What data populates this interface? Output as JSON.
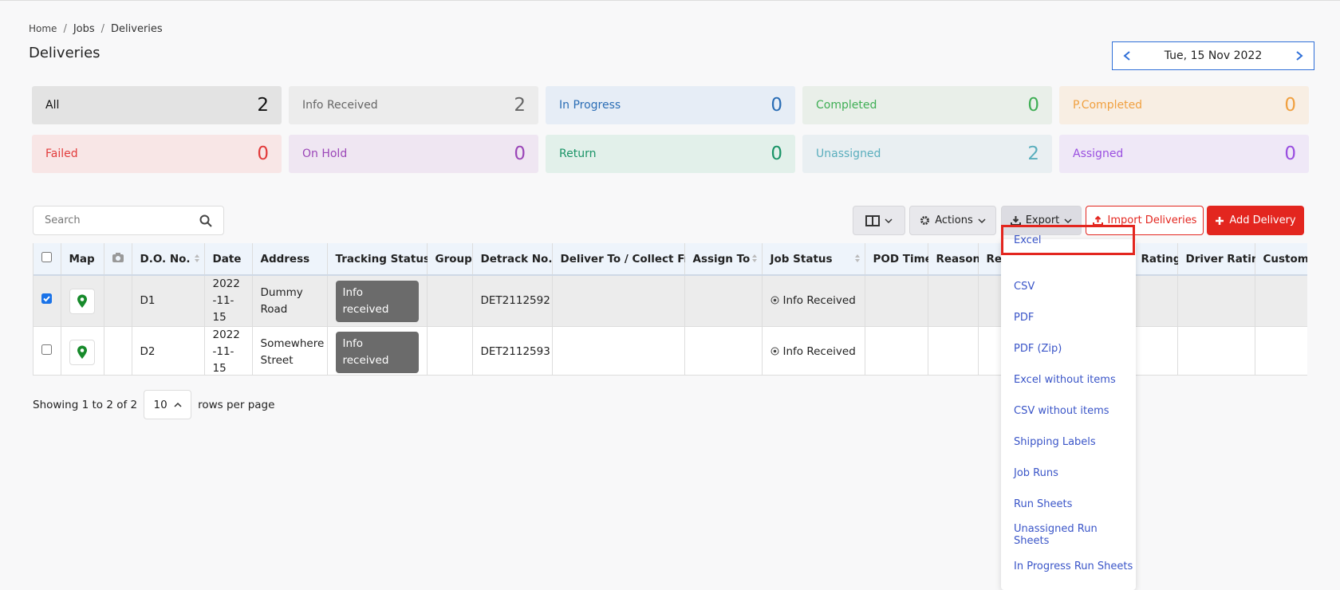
{
  "breadcrumb": [
    "Home",
    "Jobs",
    "Deliveries"
  ],
  "title": "Deliveries",
  "date": "Tue, 15 Nov 2022",
  "status_cards": [
    {
      "label": "All",
      "count": 2,
      "bg": "#e3e3e3",
      "fg": "#111"
    },
    {
      "label": "Info Received",
      "count": 2,
      "bg": "#ececec",
      "fg": "#666"
    },
    {
      "label": "In Progress",
      "count": 0,
      "bg": "#e6edf6",
      "fg": "#2a6db5"
    },
    {
      "label": "Completed",
      "count": 0,
      "bg": "#e9efe9",
      "fg": "#3fae55"
    },
    {
      "label": "P.Completed",
      "count": 0,
      "bg": "#f8eee3",
      "fg": "#f0a040"
    },
    {
      "label": "Failed",
      "count": 0,
      "bg": "#f8e6e6",
      "fg": "#e23b3b"
    },
    {
      "label": "On Hold",
      "count": 0,
      "bg": "#efe6f2",
      "fg": "#9b46b8"
    },
    {
      "label": "Return",
      "count": 0,
      "bg": "#e2f0ea",
      "fg": "#1a9467"
    },
    {
      "label": "Unassigned",
      "count": 2,
      "bg": "#e9eff2",
      "fg": "#5aaebd"
    },
    {
      "label": "Assigned",
      "count": 0,
      "bg": "#efe8f7",
      "fg": "#9a4fe0"
    }
  ],
  "search_placeholder": "Search",
  "toolbar": {
    "actions": "Actions",
    "export": "Export",
    "import": "Import Deliveries",
    "add": "Add Delivery"
  },
  "table": {
    "columns": [
      "Map",
      "",
      "D.O. No.",
      "Date",
      "Address",
      "Tracking Status",
      "Group",
      "Detrack No.",
      "Deliver To / Collect From",
      "Assign To",
      "Job Status",
      "POD Time",
      "Reason",
      "Rec",
      "Rating",
      "Driver Rating",
      "Customer"
    ],
    "rows": [
      {
        "checked": true,
        "do_no": "D1",
        "date": "2022-11-15",
        "address": "Dummy Road",
        "tracking_status": "Info received",
        "detrack_no": "DET2112592",
        "job_status": "Info Received"
      },
      {
        "checked": false,
        "do_no": "D2",
        "date": "2022-11-15",
        "address": "Somewhere Street",
        "tracking_status": "Info received",
        "detrack_no": "DET2112593",
        "job_status": "Info Received"
      }
    ]
  },
  "pagination": {
    "showing": "Showing 1 to 2 of 2",
    "page_size": "10",
    "suffix": "rows per page"
  },
  "export_menu": [
    "Excel",
    "CSV",
    "PDF",
    "PDF (Zip)",
    "Excel without items",
    "CSV without items",
    "Shipping Labels",
    "Job Runs",
    "Run Sheets",
    "Unassigned Run Sheets",
    "In Progress Run Sheets"
  ]
}
